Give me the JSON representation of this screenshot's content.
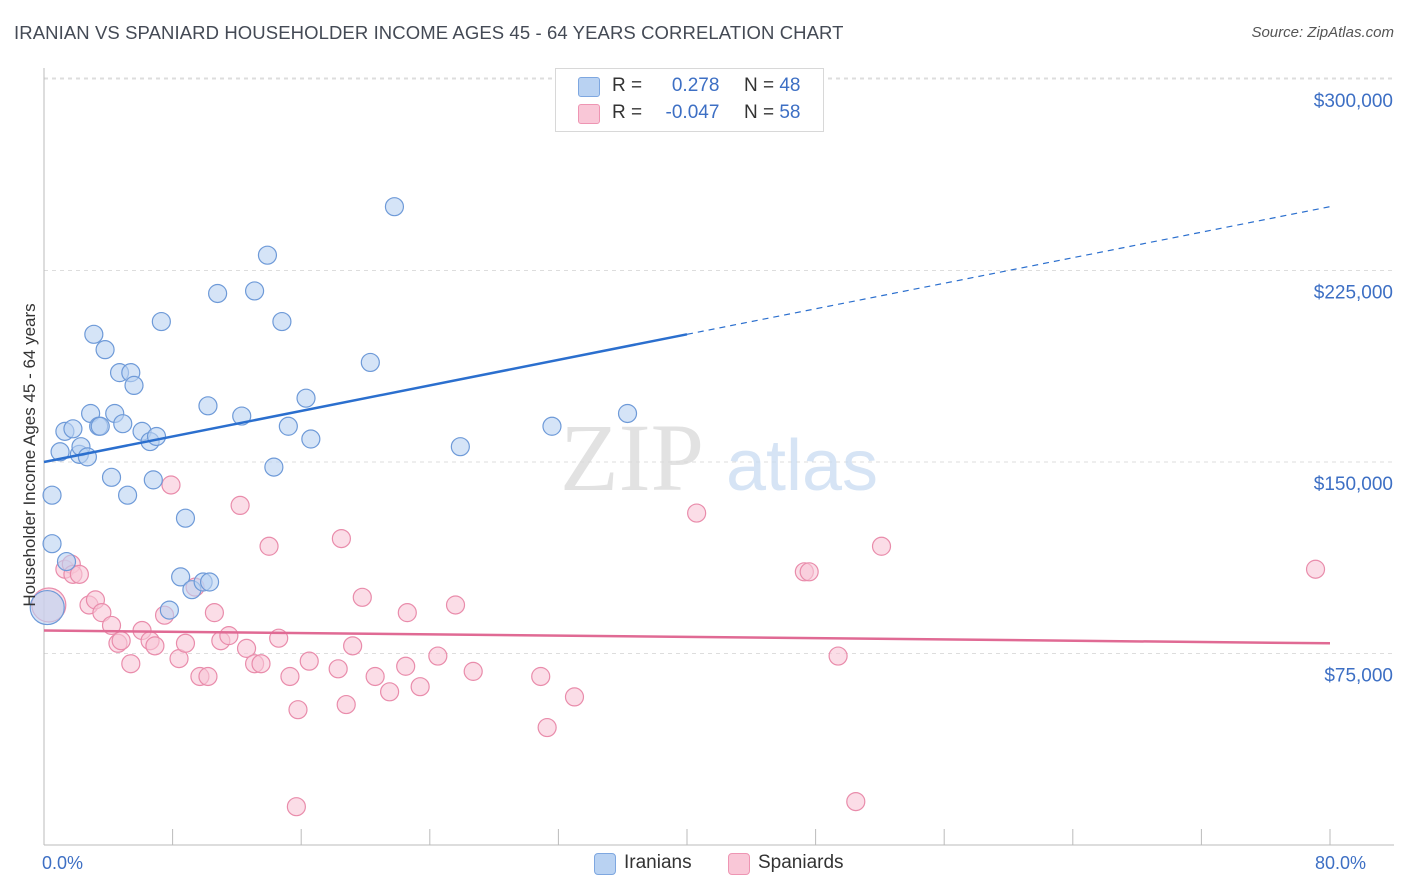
{
  "title": "IRANIAN VS SPANIARD HOUSEHOLDER INCOME AGES 45 - 64 YEARS CORRELATION CHART",
  "source": "Source: ZipAtlas.com",
  "watermark": {
    "zip": "ZIP",
    "atlas": "atlas"
  },
  "legend": {
    "r_label": "R =",
    "n_label": "N =",
    "rows": [
      {
        "r": "0.278",
        "n": "48",
        "fill": "#b9d2f2",
        "stroke": "#7ea7e0"
      },
      {
        "r": "-0.047",
        "n": "58",
        "fill": "#f9c7d7",
        "stroke": "#ee95b3"
      }
    ]
  },
  "colors": {
    "iranians_fill": "#b9d2f2",
    "iranians_stroke": "#6e9ad8",
    "iranians_line": "#2b6fce",
    "spaniards_fill": "#f9c7d7",
    "spaniards_stroke": "#e98cab",
    "spaniards_line": "#e06a94",
    "axis_label": "#3d6fc4",
    "grid": "#dddddd"
  },
  "chart_data": {
    "type": "scatter",
    "title": "IRANIAN VS SPANIARD HOUSEHOLDER INCOME AGES 45 - 64 YEARS CORRELATION CHART",
    "xlabel": "",
    "ylabel": "Householder Income Ages 45 - 64 years",
    "xlim": [
      0,
      80
    ],
    "ylim": [
      0,
      315000
    ],
    "x_tick_labels": [
      "0.0%",
      "80.0%"
    ],
    "y_ticks": [
      {
        "value": 75000,
        "label": "$75,000"
      },
      {
        "value": 150000,
        "label": "$150,000"
      },
      {
        "value": 225000,
        "label": "$225,000"
      },
      {
        "value": 300000,
        "label": "$300,000"
      }
    ],
    "grid": "horizontal dashed",
    "series": [
      {
        "name": "Iranians",
        "trend": {
          "x": [
            0,
            40
          ],
          "y": [
            150000,
            200000
          ],
          "dashed_extension": {
            "x": [
              40,
              80
            ],
            "y": [
              200000,
              250000
            ]
          }
        },
        "points": [
          [
            0.2,
            93000
          ],
          [
            0.5,
            137000
          ],
          [
            0.5,
            118000
          ],
          [
            1.0,
            154000
          ],
          [
            1.3,
            162000
          ],
          [
            1.4,
            111000
          ],
          [
            1.8,
            163000
          ],
          [
            2.2,
            153000
          ],
          [
            2.3,
            156000
          ],
          [
            2.7,
            152000
          ],
          [
            2.9,
            169000
          ],
          [
            3.1,
            200000
          ],
          [
            3.4,
            164000
          ],
          [
            3.5,
            164000
          ],
          [
            3.8,
            194000
          ],
          [
            4.2,
            144000
          ],
          [
            4.4,
            169000
          ],
          [
            4.7,
            185000
          ],
          [
            4.9,
            165000
          ],
          [
            5.2,
            137000
          ],
          [
            5.4,
            185000
          ],
          [
            5.6,
            180000
          ],
          [
            6.1,
            162000
          ],
          [
            6.6,
            158000
          ],
          [
            6.8,
            143000
          ],
          [
            7.0,
            160000
          ],
          [
            7.3,
            205000
          ],
          [
            7.8,
            92000
          ],
          [
            8.5,
            105000
          ],
          [
            8.8,
            128000
          ],
          [
            9.2,
            100000
          ],
          [
            9.9,
            103000
          ],
          [
            10.2,
            172000
          ],
          [
            10.3,
            103000
          ],
          [
            10.8,
            216000
          ],
          [
            12.3,
            168000
          ],
          [
            13.1,
            217000
          ],
          [
            13.9,
            231000
          ],
          [
            14.3,
            148000
          ],
          [
            14.8,
            205000
          ],
          [
            15.2,
            164000
          ],
          [
            16.3,
            175000
          ],
          [
            16.6,
            159000
          ],
          [
            20.3,
            189000
          ],
          [
            21.8,
            250000
          ],
          [
            25.9,
            156000
          ],
          [
            31.6,
            164000
          ],
          [
            36.3,
            169000
          ]
        ]
      },
      {
        "name": "Spaniards",
        "trend": {
          "x": [
            0,
            80
          ],
          "y": [
            84000,
            79000
          ]
        },
        "points": [
          [
            0.3,
            94000
          ],
          [
            1.3,
            108000
          ],
          [
            1.7,
            110000
          ],
          [
            1.8,
            106000
          ],
          [
            2.2,
            106000
          ],
          [
            2.8,
            94000
          ],
          [
            3.2,
            96000
          ],
          [
            3.6,
            91000
          ],
          [
            4.2,
            86000
          ],
          [
            4.6,
            79000
          ],
          [
            4.8,
            80000
          ],
          [
            5.4,
            71000
          ],
          [
            6.1,
            84000
          ],
          [
            6.6,
            80000
          ],
          [
            6.9,
            78000
          ],
          [
            7.5,
            90000
          ],
          [
            7.9,
            141000
          ],
          [
            8.4,
            73000
          ],
          [
            8.8,
            79000
          ],
          [
            9.4,
            101000
          ],
          [
            9.7,
            66000
          ],
          [
            10.2,
            66000
          ],
          [
            10.6,
            91000
          ],
          [
            11.0,
            80000
          ],
          [
            11.5,
            82000
          ],
          [
            12.2,
            133000
          ],
          [
            12.6,
            77000
          ],
          [
            13.1,
            71000
          ],
          [
            13.5,
            71000
          ],
          [
            14.0,
            117000
          ],
          [
            14.6,
            81000
          ],
          [
            15.3,
            66000
          ],
          [
            15.8,
            53000
          ],
          [
            15.7,
            15000
          ],
          [
            16.5,
            72000
          ],
          [
            18.3,
            69000
          ],
          [
            18.5,
            120000
          ],
          [
            18.8,
            55000
          ],
          [
            19.2,
            78000
          ],
          [
            19.8,
            97000
          ],
          [
            20.6,
            66000
          ],
          [
            21.5,
            60000
          ],
          [
            22.5,
            70000
          ],
          [
            22.6,
            91000
          ],
          [
            23.4,
            62000
          ],
          [
            24.5,
            74000
          ],
          [
            25.6,
            94000
          ],
          [
            26.7,
            68000
          ],
          [
            30.9,
            66000
          ],
          [
            31.3,
            46000
          ],
          [
            33.0,
            58000
          ],
          [
            40.6,
            130000
          ],
          [
            47.3,
            107000
          ],
          [
            47.6,
            107000
          ],
          [
            49.4,
            74000
          ],
          [
            50.5,
            17000
          ],
          [
            52.1,
            117000
          ],
          [
            79.1,
            108000
          ]
        ]
      }
    ]
  },
  "bottom_legend": [
    {
      "label": "Iranians",
      "fill": "#b9d2f2",
      "stroke": "#7ea7e0"
    },
    {
      "label": "Spaniards",
      "fill": "#f9c7d7",
      "stroke": "#ee95b3"
    }
  ]
}
